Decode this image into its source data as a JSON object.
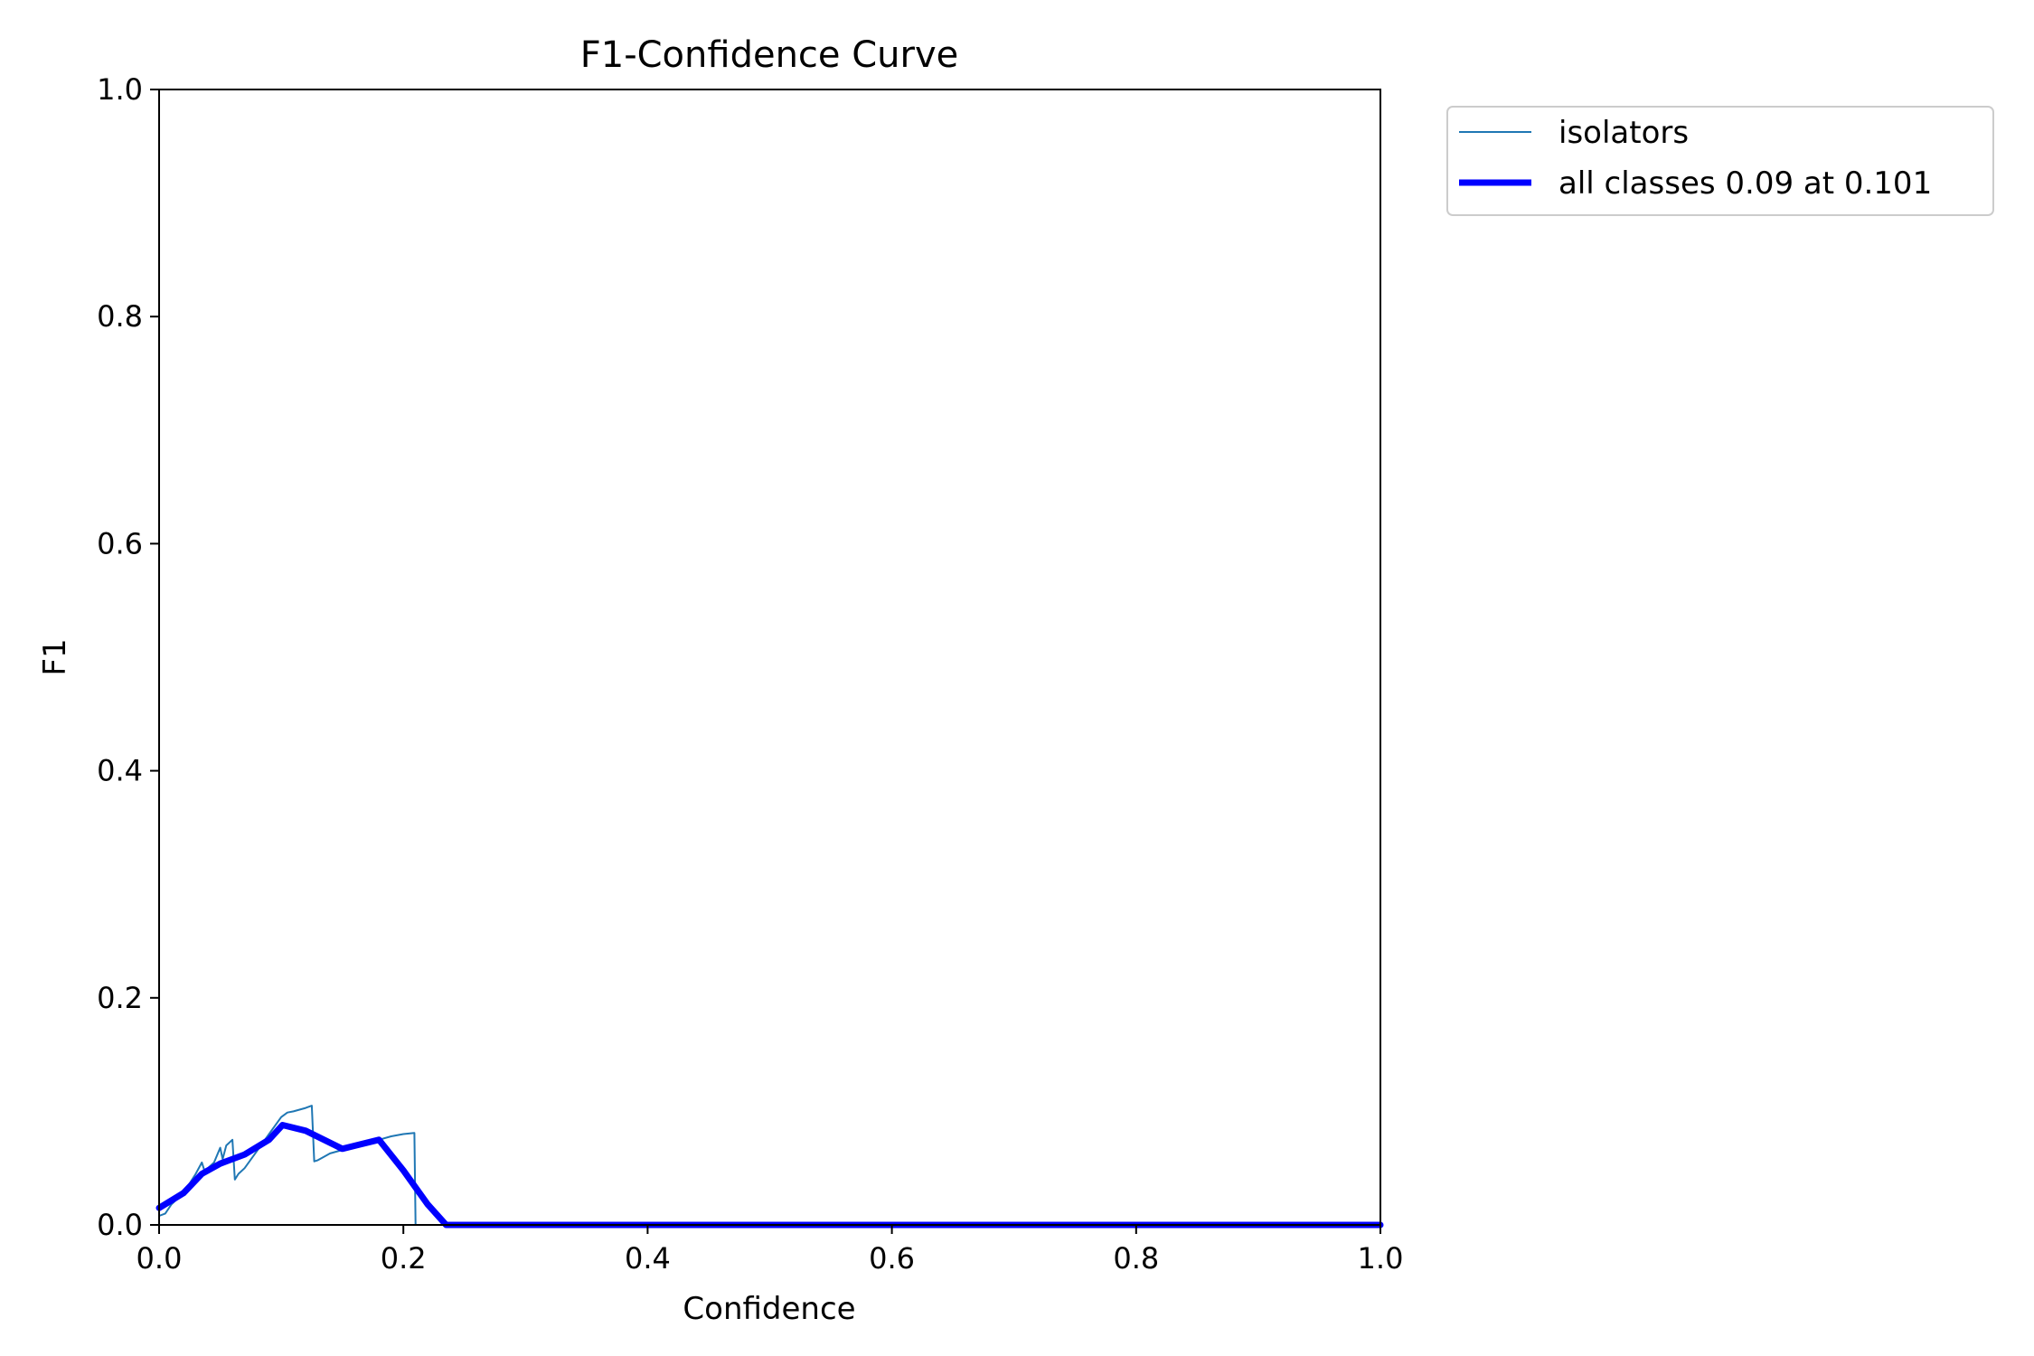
{
  "chart_data": {
    "type": "line",
    "title": "F1-Confidence Curve",
    "xlabel": "Confidence",
    "ylabel": "F1",
    "xlim": [
      0,
      1
    ],
    "ylim": [
      0,
      1
    ],
    "x_ticks": [
      "0.0",
      "0.2",
      "0.4",
      "0.6",
      "0.8",
      "1.0"
    ],
    "y_ticks": [
      "0.0",
      "0.2",
      "0.4",
      "0.6",
      "0.8",
      "1.0"
    ],
    "grid": false,
    "legend_position": "outside-top-right",
    "series": [
      {
        "name": "isolators",
        "color": "#1f77b4",
        "style": "thin",
        "x": [
          0.0,
          0.005,
          0.01,
          0.02,
          0.03,
          0.035,
          0.038,
          0.04,
          0.045,
          0.05,
          0.052,
          0.055,
          0.06,
          0.062,
          0.065,
          0.07,
          0.08,
          0.09,
          0.1,
          0.105,
          0.11,
          0.12,
          0.125,
          0.127,
          0.13,
          0.135,
          0.14,
          0.15,
          0.16,
          0.17,
          0.18,
          0.19,
          0.2,
          0.209,
          0.21,
          0.215,
          0.22,
          0.3,
          0.4,
          0.5,
          0.6,
          0.7,
          0.8,
          0.9,
          1.0
        ],
        "y": [
          0.008,
          0.01,
          0.018,
          0.028,
          0.045,
          0.055,
          0.045,
          0.05,
          0.055,
          0.068,
          0.058,
          0.07,
          0.075,
          0.04,
          0.045,
          0.05,
          0.065,
          0.08,
          0.095,
          0.099,
          0.1,
          0.103,
          0.105,
          0.056,
          0.057,
          0.06,
          0.063,
          0.066,
          0.069,
          0.072,
          0.075,
          0.078,
          0.08,
          0.081,
          0.0,
          0.0,
          0.0,
          0.0,
          0.0,
          0.0,
          0.0,
          0.0,
          0.0,
          0.0,
          0.0
        ]
      },
      {
        "name": "all classes 0.09 at 0.101",
        "color": "#0000ff",
        "style": "thick",
        "x": [
          0.0,
          0.02,
          0.035,
          0.05,
          0.07,
          0.09,
          0.101,
          0.12,
          0.15,
          0.18,
          0.2,
          0.22,
          0.235,
          0.3,
          0.4,
          0.5,
          0.6,
          0.7,
          0.8,
          0.9,
          1.0
        ],
        "y": [
          0.015,
          0.028,
          0.045,
          0.054,
          0.062,
          0.075,
          0.088,
          0.083,
          0.067,
          0.075,
          0.048,
          0.018,
          0.0,
          0.0,
          0.0,
          0.0,
          0.0,
          0.0,
          0.0,
          0.0,
          0.0
        ]
      }
    ]
  }
}
